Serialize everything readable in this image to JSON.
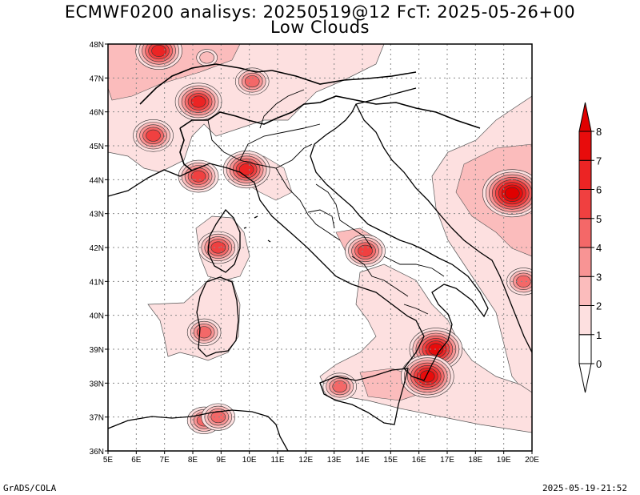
{
  "title_line1": "ECMWF0200 analisys: 20250519@12 FcT: 2025-05-26+00",
  "title_line2": "Low Clouds",
  "footer_left": "GrADS/COLA",
  "footer_right": "2025-05-19-21:52",
  "map": {
    "lon_range": [
      5,
      20
    ],
    "lat_range": [
      36,
      48
    ],
    "lon_ticks": [
      "5E",
      "6E",
      "7E",
      "8E",
      "9E",
      "10E",
      "11E",
      "12E",
      "13E",
      "14E",
      "15E",
      "16E",
      "17E",
      "18E",
      "19E",
      "20E"
    ],
    "lat_ticks": [
      "36N",
      "37N",
      "38N",
      "39N",
      "40N",
      "41N",
      "42N",
      "43N",
      "44N",
      "45N",
      "46N",
      "47N",
      "48N"
    ],
    "grid": true
  },
  "colorbar": {
    "labels": [
      "0",
      "1",
      "2",
      "3",
      "4",
      "5",
      "6",
      "7",
      "8"
    ],
    "colors": [
      "#ffffff",
      "#fde0e0",
      "#fbbcbc",
      "#f89494",
      "#f46868",
      "#f04040",
      "#ec2424",
      "#e80c0c",
      "#e00000"
    ]
  },
  "cloud_patches": [
    {
      "lon": 8.5,
      "lat": 47.6,
      "level": 2
    },
    {
      "lon": 6.8,
      "lat": 47.8,
      "level": 6
    },
    {
      "lon": 8.2,
      "lat": 46.3,
      "level": 6
    },
    {
      "lon": 10.1,
      "lat": 46.9,
      "level": 4
    },
    {
      "lon": 6.6,
      "lat": 45.3,
      "level": 5
    },
    {
      "lon": 8.2,
      "lat": 44.1,
      "level": 5
    },
    {
      "lon": 9.9,
      "lat": 44.3,
      "level": 6
    },
    {
      "lon": 8.9,
      "lat": 42.0,
      "level": 5
    },
    {
      "lon": 8.4,
      "lat": 39.5,
      "level": 4
    },
    {
      "lon": 14.1,
      "lat": 41.9,
      "level": 5
    },
    {
      "lon": 16.6,
      "lat": 39.0,
      "level": 7
    },
    {
      "lon": 16.3,
      "lat": 38.2,
      "level": 7
    },
    {
      "lon": 13.2,
      "lat": 37.9,
      "level": 4
    },
    {
      "lon": 19.3,
      "lat": 43.6,
      "level": 8
    },
    {
      "lon": 19.7,
      "lat": 41.0,
      "level": 4
    },
    {
      "lon": 8.4,
      "lat": 36.9,
      "level": 4
    },
    {
      "lon": 8.9,
      "lat": 37.0,
      "level": 4
    }
  ]
}
